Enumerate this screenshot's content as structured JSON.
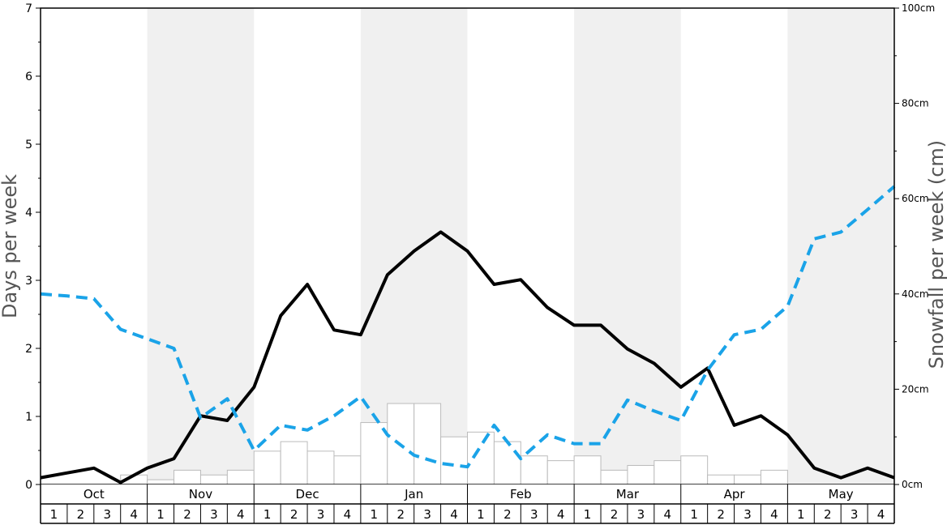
{
  "chart_data": {
    "type": "bar",
    "title": "",
    "ylabel": "Days per week",
    "y2label": "Snowfall per week (cm)",
    "ylim": [
      0,
      7
    ],
    "y2lim": [
      0,
      100
    ],
    "yticks": [
      "0",
      "1",
      "2",
      "3",
      "4",
      "5",
      "6",
      "7"
    ],
    "y2ticks": [
      "0cm",
      "20cm",
      "40cm",
      "60cm",
      "80cm",
      "100cm"
    ],
    "months": [
      "Oct",
      "Nov",
      "Dec",
      "Jan",
      "Feb",
      "Mar",
      "Apr",
      "May"
    ],
    "weeks": [
      "1",
      "2",
      "3",
      "4"
    ],
    "shaded_months": [
      1,
      3,
      5,
      7
    ],
    "series": [
      {
        "type": "bar",
        "axis": "right",
        "color": "#ffffff",
        "stroke": "#bbbbbb",
        "values": [
          0,
          0,
          0,
          2,
          1,
          3,
          2,
          3,
          7,
          9,
          7,
          6,
          13,
          17,
          17,
          10,
          11,
          9,
          6,
          5,
          6,
          3,
          4,
          5,
          6,
          2,
          2,
          3,
          0,
          0,
          0,
          0
        ]
      },
      {
        "type": "line",
        "axis": "left",
        "color": "#000000",
        "dash": "solid",
        "values": [
          0.1,
          0.17,
          0.24,
          0.03,
          0.24,
          0.38,
          1.01,
          0.94,
          1.43,
          2.48,
          2.94,
          2.27,
          2.2,
          3.08,
          3.43,
          3.71,
          3.43,
          2.94,
          3.01,
          2.6,
          2.34,
          2.34,
          1.99,
          1.78,
          1.43,
          1.71,
          0.87,
          1.01,
          0.73,
          0.24,
          0.1,
          0.24,
          0.1
        ]
      },
      {
        "type": "line",
        "axis": "left",
        "color": "#1aa3e8",
        "dash": "dashed",
        "values": [
          2.8,
          2.77,
          2.73,
          2.28,
          2.14,
          2.0,
          0.98,
          1.26,
          0.5,
          0.87,
          0.8,
          1.01,
          1.29,
          0.73,
          0.43,
          0.31,
          0.26,
          0.87,
          0.38,
          0.73,
          0.6,
          0.6,
          1.24,
          1.08,
          0.94,
          1.68,
          2.2,
          2.28,
          2.62,
          3.61,
          3.71,
          4.04,
          4.38
        ]
      }
    ]
  }
}
